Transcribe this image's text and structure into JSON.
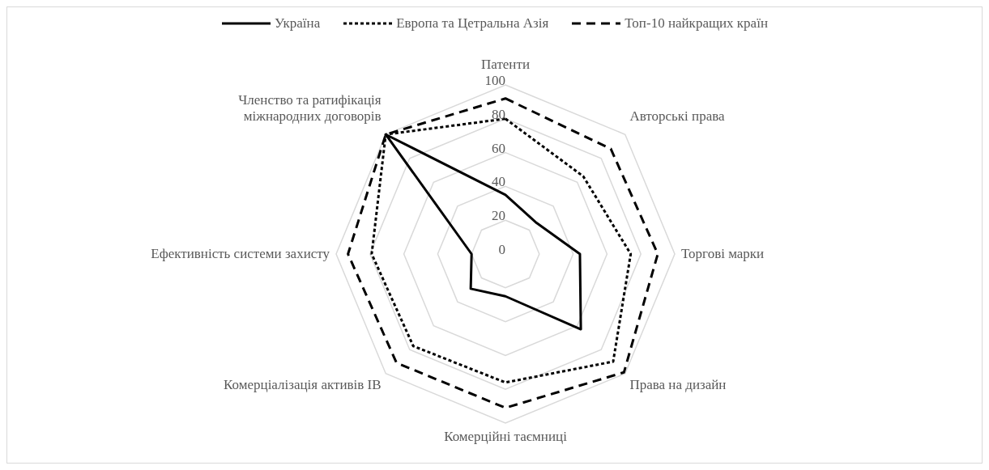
{
  "chart_data": {
    "type": "radar",
    "categories": [
      "Патенти",
      "Авторські права",
      "Торгові марки",
      "Права на дизайн",
      "Комерційні таємниці",
      "Комерціалізація активів  ІВ",
      "Ефективність системи захисту",
      "Членство та ратифікація міжнародних договорів"
    ],
    "series": [
      {
        "name": "Україна",
        "color": "#000000",
        "line_style": "solid",
        "values": [
          35,
          26,
          44,
          63,
          25,
          29,
          20,
          100
        ]
      },
      {
        "name": "Европа та Цетральна Азія",
        "color": "#000000",
        "line_style": "dotted",
        "values": [
          80,
          65,
          74,
          90,
          76,
          77,
          79,
          100
        ]
      },
      {
        "name": "Топ-10 найкращих країн",
        "color": "#000000",
        "line_style": "dashed",
        "values": [
          92,
          88,
          90,
          99,
          91,
          91,
          93,
          100
        ]
      }
    ],
    "ylim": [
      0,
      100
    ],
    "yticks": [
      0,
      20,
      40,
      60,
      80,
      100
    ],
    "grid": true,
    "legend": "top",
    "marker": "none"
  }
}
